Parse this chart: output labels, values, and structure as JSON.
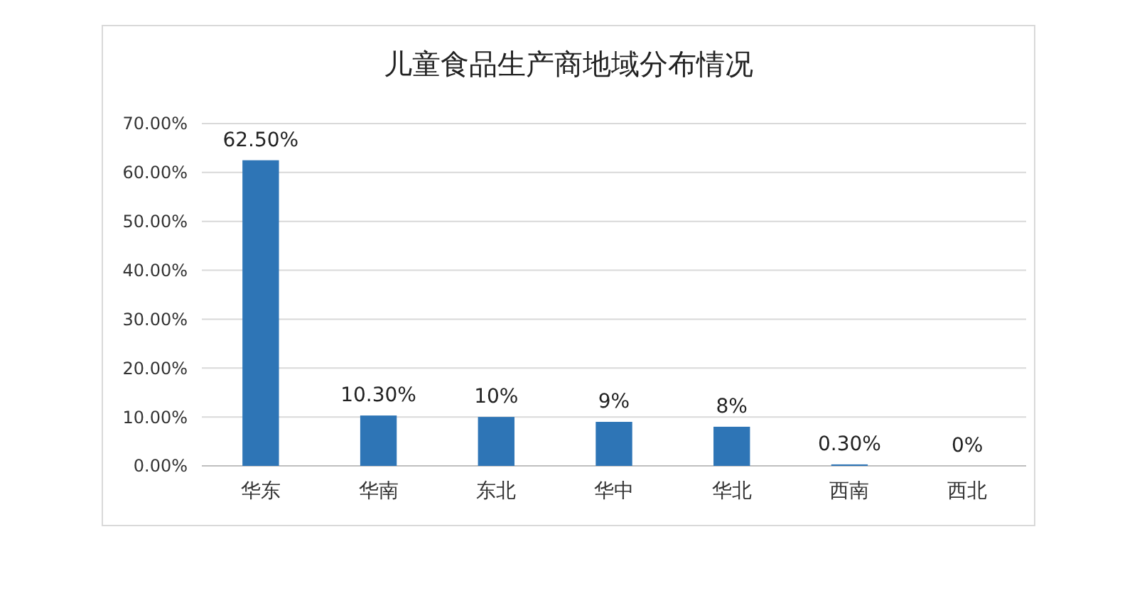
{
  "chart_data": {
    "type": "bar",
    "title": "儿童食品生产商地域分布情况",
    "categories": [
      "华东",
      "华南",
      "东北",
      "华中",
      "华北",
      "西南",
      "西北"
    ],
    "values": [
      62.5,
      10.3,
      10,
      9,
      8,
      0.3,
      0
    ],
    "value_labels": [
      "62.50%",
      "10.30%",
      "10%",
      "9%",
      "8%",
      "0.30%",
      "0%"
    ],
    "color": "#2e75b6",
    "ylim": [
      0,
      70
    ],
    "yticks": [
      {
        "value": 0,
        "label": "0.00%"
      },
      {
        "value": 10,
        "label": "10.00%"
      },
      {
        "value": 20,
        "label": "20.00%"
      },
      {
        "value": 30,
        "label": "30.00%"
      },
      {
        "value": 40,
        "label": "40.00%"
      },
      {
        "value": 50,
        "label": "50.00%"
      },
      {
        "value": 60,
        "label": "60.00%"
      },
      {
        "value": 70,
        "label": "70.00%"
      }
    ],
    "grid": "y"
  }
}
